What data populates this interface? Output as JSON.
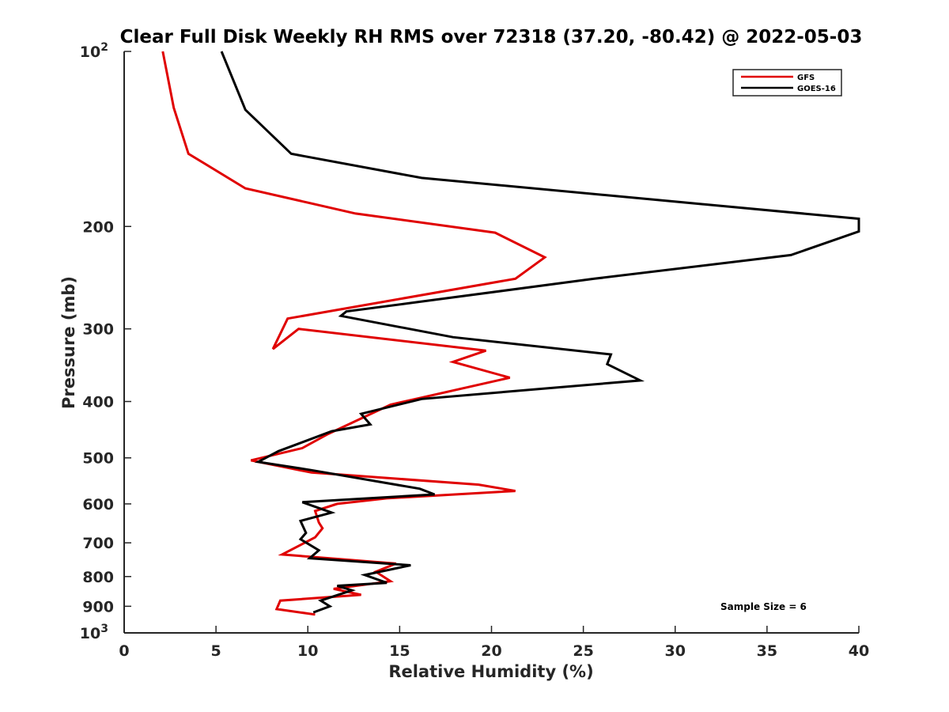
{
  "chart_data": {
    "type": "line",
    "title": "Clear Full Disk Weekly RH RMS over 72318 (37.20, -80.42) @ 2022-05-03",
    "xlabel": "Relative Humidity (%)",
    "ylabel": "Pressure (mb)",
    "xlim": [
      0,
      40
    ],
    "ylim": [
      100,
      1000
    ],
    "y_scale": "log",
    "y_reversed": true,
    "xticks": [
      "0",
      "5",
      "10",
      "15",
      "20",
      "25",
      "30",
      "35",
      "40"
    ],
    "yticks": [
      {
        "value": 100,
        "label": "10",
        "sup": "2"
      },
      {
        "value": 200,
        "label": "200",
        "sup": ""
      },
      {
        "value": 300,
        "label": "300",
        "sup": ""
      },
      {
        "value": 400,
        "label": "400",
        "sup": ""
      },
      {
        "value": 500,
        "label": "500",
        "sup": ""
      },
      {
        "value": 600,
        "label": "600",
        "sup": ""
      },
      {
        "value": 700,
        "label": "700",
        "sup": ""
      },
      {
        "value": 800,
        "label": "800",
        "sup": ""
      },
      {
        "value": 900,
        "label": "900",
        "sup": ""
      },
      {
        "value": 1000,
        "label": "10",
        "sup": "3"
      }
    ],
    "grid": false,
    "legend_position": "top-right",
    "annotation": "Sample Size = 6",
    "series": [
      {
        "name": "GFS",
        "color": "#e00000",
        "x": [
          2.1,
          2.7,
          3.5,
          6.6,
          12.6,
          20.2,
          22.9,
          21.3,
          8.9,
          8.1,
          9.5,
          19.7,
          17.9,
          21.0,
          14.5,
          11.1,
          9.7,
          6.9,
          10.2,
          19.3,
          21.3,
          14.3,
          11.6,
          10.4,
          10.6,
          10.8,
          10.4,
          8.6,
          14.8,
          13.7,
          14.5,
          11.4,
          12.9,
          8.5,
          8.3,
          10.4
        ],
        "y": [
          100,
          125,
          150,
          172,
          190,
          205,
          226,
          246,
          288,
          325,
          300,
          327,
          342,
          364,
          405,
          455,
          481,
          505,
          530,
          556,
          570,
          587,
          600,
          617,
          646,
          661,
          685,
          733,
          760,
          785,
          815,
          840,
          860,
          880,
          910,
          930
        ]
      },
      {
        "name": "GOES-16",
        "color": "#000000",
        "x": [
          5.3,
          6.6,
          9.1,
          16.2,
          40,
          40,
          36.3,
          25.6,
          12.1,
          11.8,
          17.9,
          26.5,
          26.3,
          28.1,
          16.2,
          12.9,
          13.4,
          11.3,
          8.4,
          7.3,
          10.2,
          16.1,
          16.9,
          9.7,
          11.3,
          9.6,
          9.9,
          9.6,
          10.6,
          10.1,
          15.6,
          13.1,
          14.3,
          11.6,
          12.4,
          10.7,
          11.2,
          10.3
        ],
        "y": [
          100,
          126,
          150,
          165,
          194,
          204,
          224,
          246,
          280,
          285,
          310,
          332,
          345,
          368,
          396,
          420,
          438,
          450,
          487,
          508,
          525,
          565,
          578,
          596,
          621,
          642,
          673,
          690,
          721,
          744,
          765,
          795,
          820,
          830,
          845,
          880,
          900,
          922
        ]
      }
    ]
  }
}
